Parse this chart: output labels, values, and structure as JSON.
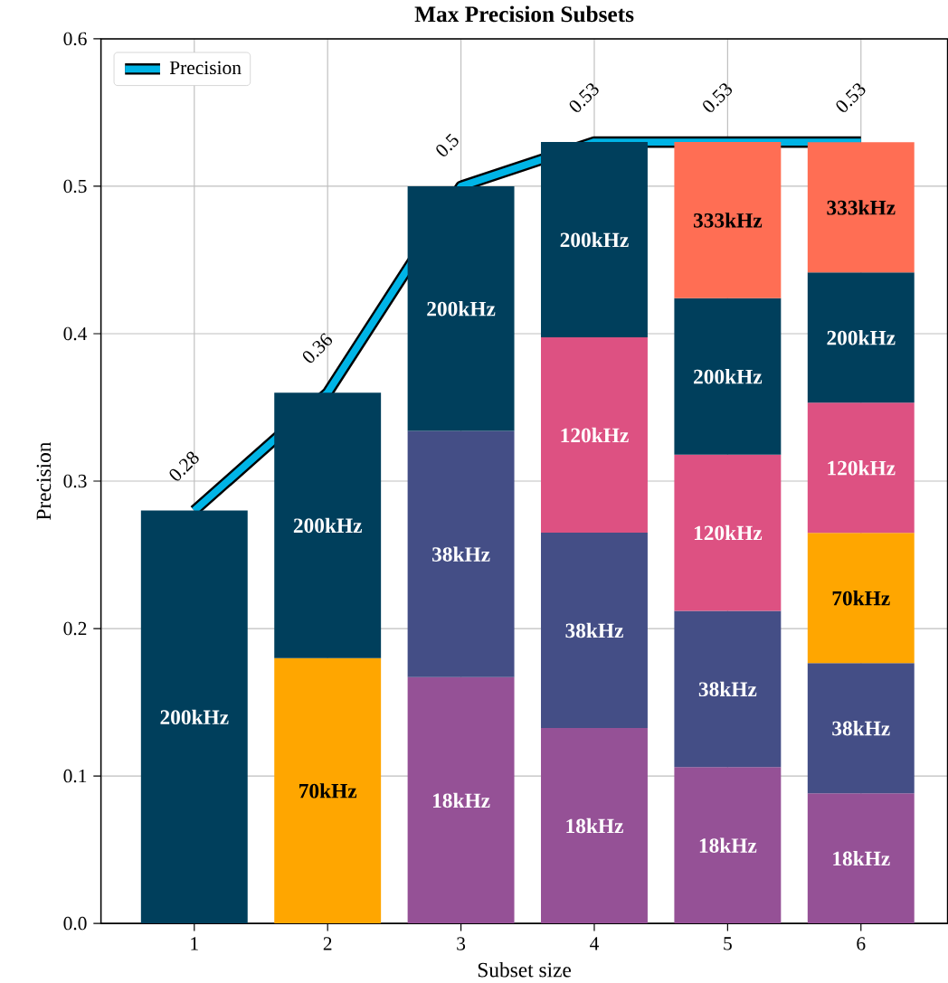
{
  "chart_data": {
    "type": "bar",
    "title": "Max Precision Subsets",
    "xlabel": "Subset size",
    "ylabel": "Precision",
    "x": [
      1,
      2,
      3,
      4,
      5,
      6
    ],
    "stacked": true,
    "xlim": [
      0.3,
      6.65
    ],
    "xticks": [
      1,
      2,
      3,
      4,
      5,
      6
    ],
    "ylim": [
      0,
      0.6
    ],
    "yticks": [
      {
        "value": 0,
        "label": "0.0"
      },
      {
        "value": 0.1,
        "label": "0.1"
      },
      {
        "value": 0.2,
        "label": "0.2"
      },
      {
        "value": 0.3,
        "label": "0.3"
      },
      {
        "value": 0.4,
        "label": "0.4"
      },
      {
        "value": 0.5,
        "label": "0.5"
      },
      {
        "value": 0.6,
        "label": "0.6"
      }
    ],
    "grid": true,
    "legend": "top left",
    "series": [
      {
        "name": "18kHz",
        "color": "#955196",
        "values": [
          null,
          null,
          0.167,
          0.1325,
          0.106,
          0.0883
        ]
      },
      {
        "name": "38kHz",
        "color": "#444e86",
        "values": [
          null,
          null,
          0.167,
          0.1325,
          0.106,
          0.0883
        ]
      },
      {
        "name": "70kHz",
        "color": "#ffa600",
        "values": [
          null,
          0.18,
          null,
          null,
          null,
          0.0883
        ]
      },
      {
        "name": "120kHz",
        "color": "#dd5182",
        "values": [
          null,
          null,
          null,
          0.1325,
          0.106,
          0.0883
        ]
      },
      {
        "name": "200kHz",
        "color": "#003f5c",
        "values": [
          0.28,
          0.18,
          0.166,
          0.1325,
          0.106,
          0.0883
        ]
      },
      {
        "name": "333kHz",
        "color": "#ff6e54",
        "values": [
          null,
          null,
          null,
          null,
          0.106,
          0.0883
        ]
      },
      {
        "name": "Precision",
        "type": "line",
        "color": "#00b4e6",
        "values": [
          0.28,
          0.36,
          0.5,
          0.53,
          0.53,
          0.53
        ],
        "value_labels": [
          "0.28",
          "0.36",
          "0.5",
          "0.53",
          "0.53",
          "0.53"
        ]
      }
    ]
  }
}
